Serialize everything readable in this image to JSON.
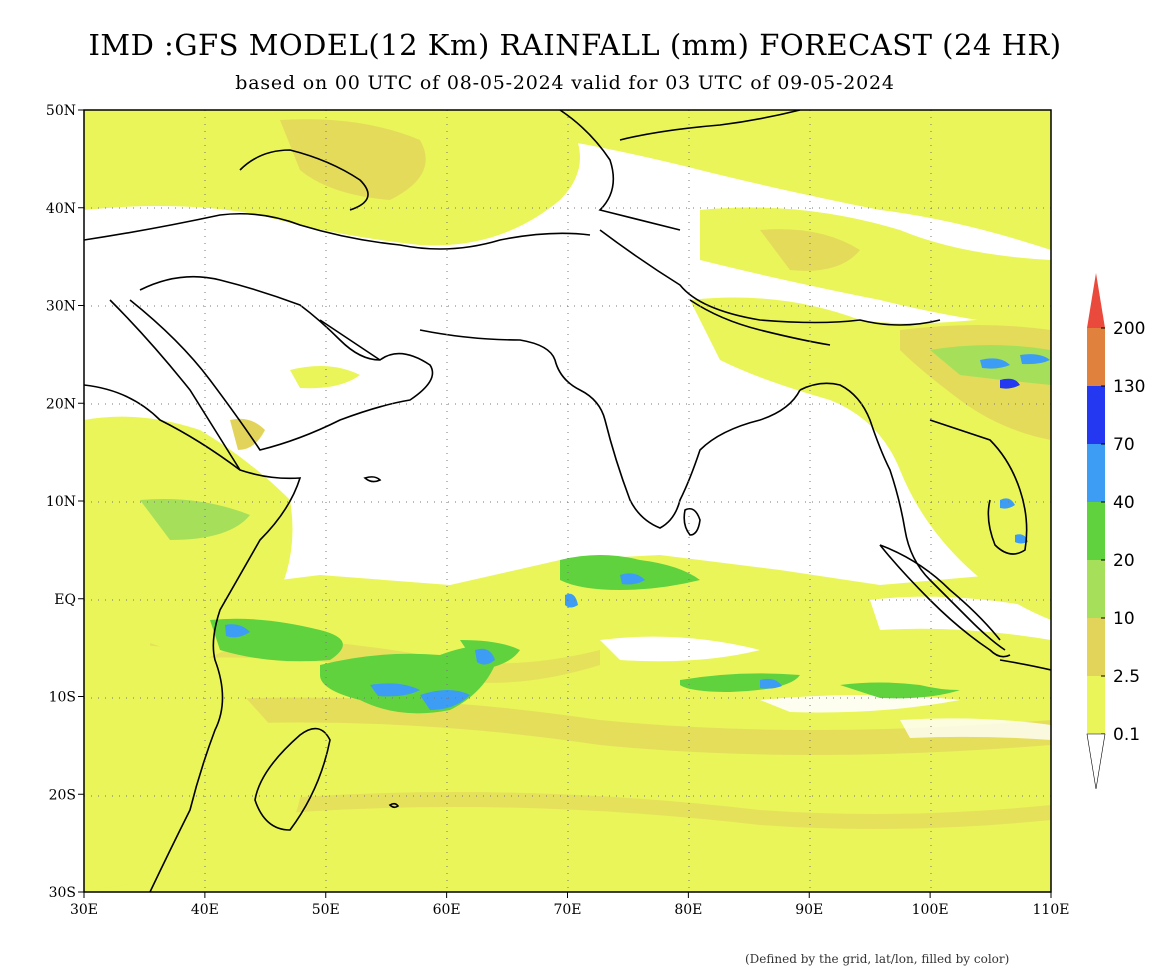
{
  "title": "IMD :GFS MODEL(12 Km) RAINFALL (mm) FORECAST (24 HR)",
  "subtitle": "based on 00 UTC of 08-05-2024 valid for 03 UTC of 09-05-2024",
  "footer_note": "(Defined by the grid, lat/lon, filled by color)",
  "map": {
    "lon_range": [
      30,
      110
    ],
    "lat_range": [
      -30,
      50
    ],
    "lon_ticks": [
      {
        "value": 30,
        "label": "30E"
      },
      {
        "value": 40,
        "label": "40E"
      },
      {
        "value": 50,
        "label": "50E"
      },
      {
        "value": 60,
        "label": "60E"
      },
      {
        "value": 70,
        "label": "70E"
      },
      {
        "value": 80,
        "label": "80E"
      },
      {
        "value": 90,
        "label": "90E"
      },
      {
        "value": 100,
        "label": "100E"
      },
      {
        "value": 110,
        "label": "110E"
      }
    ],
    "lat_ticks": [
      {
        "value": 50,
        "label": "50N"
      },
      {
        "value": 40,
        "label": "40N"
      },
      {
        "value": 30,
        "label": "30N"
      },
      {
        "value": 20,
        "label": "20N"
      },
      {
        "value": 10,
        "label": "10N"
      },
      {
        "value": 0,
        "label": "EQ"
      },
      {
        "value": -10,
        "label": "10S"
      },
      {
        "value": -20,
        "label": "20S"
      },
      {
        "value": -30,
        "label": "30S"
      }
    ]
  },
  "legend": {
    "bins": [
      {
        "label": "0.1",
        "color": "#eaf55a"
      },
      {
        "label": "2.5",
        "color": "#e2d45a"
      },
      {
        "label": "10",
        "color": "#a6e05a"
      },
      {
        "label": "20",
        "color": "#5fd23e"
      },
      {
        "label": "40",
        "color": "#3d9df5"
      },
      {
        "label": "70",
        "color": "#2338f0"
      },
      {
        "label": "130",
        "color": "#e0813e"
      },
      {
        "label": "200",
        "color": "#ea4a3c"
      }
    ]
  }
}
